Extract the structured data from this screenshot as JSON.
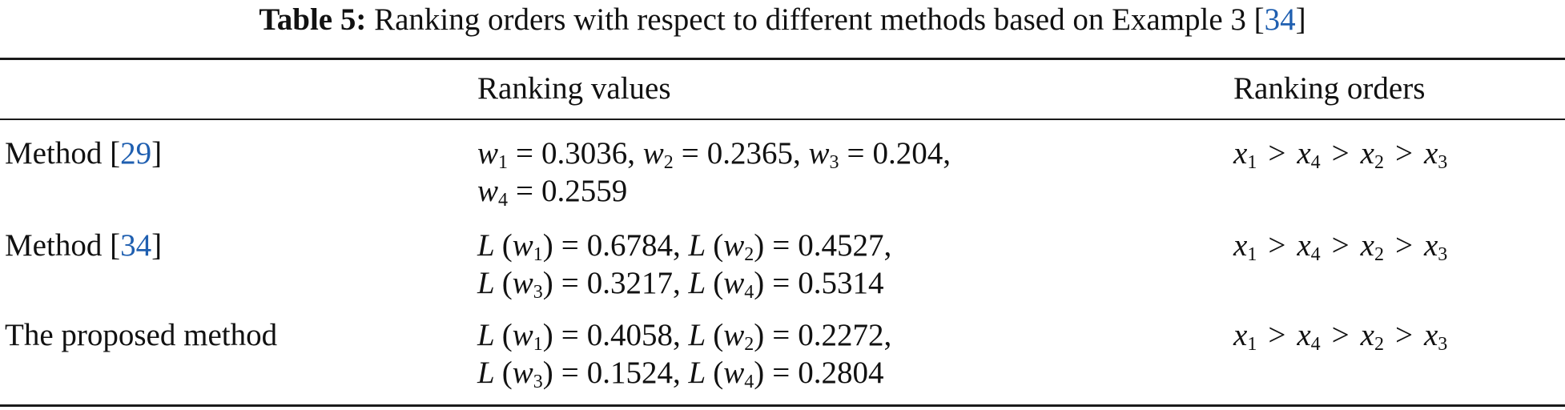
{
  "caption": {
    "label": "Table 5:",
    "text": "Ranking orders with respect to different methods based on Example 3 [",
    "ref": "34",
    "close": "]"
  },
  "headers": {
    "col1": "",
    "col2": "Ranking values",
    "col3": "Ranking orders"
  },
  "rows": [
    {
      "method": "Method [",
      "ref": "29",
      "method_close": "]",
      "values_line1": [
        {
          "var": "w",
          "sub": "1",
          "val": "0.3036"
        },
        {
          "var": "w",
          "sub": "2",
          "val": "0.2365"
        },
        {
          "var": "w",
          "sub": "3",
          "val": "0.204"
        }
      ],
      "values_line2": [
        {
          "var": "w",
          "sub": "4",
          "val": "0.2559"
        }
      ],
      "order": "x1 > x4 > x2 > x3"
    },
    {
      "method": "Method [",
      "ref": "34",
      "method_close": "]",
      "values_line1": [
        {
          "fn": "L",
          "var": "w",
          "sub": "1",
          "val": "0.6784"
        },
        {
          "fn": "L",
          "var": "w",
          "sub": "2",
          "val": "0.4527"
        }
      ],
      "values_line2": [
        {
          "fn": "L",
          "var": "w",
          "sub": "3",
          "val": "0.3217"
        },
        {
          "fn": "L",
          "var": "w",
          "sub": "4",
          "val": "0.5314"
        }
      ],
      "order": "x1 > x4 > x2 > x3"
    },
    {
      "method": "The proposed method",
      "ref": "",
      "method_close": "",
      "values_line1": [
        {
          "fn": "L",
          "var": "w",
          "sub": "1",
          "val": "0.4058"
        },
        {
          "fn": "L",
          "var": "w",
          "sub": "2",
          "val": "0.2272"
        }
      ],
      "values_line2": [
        {
          "fn": "L",
          "var": "w",
          "sub": "3",
          "val": "0.1524"
        },
        {
          "fn": "L",
          "var": "w",
          "sub": "4",
          "val": "0.2804"
        }
      ],
      "order": "x1 > x4 > x2 > x3"
    }
  ]
}
